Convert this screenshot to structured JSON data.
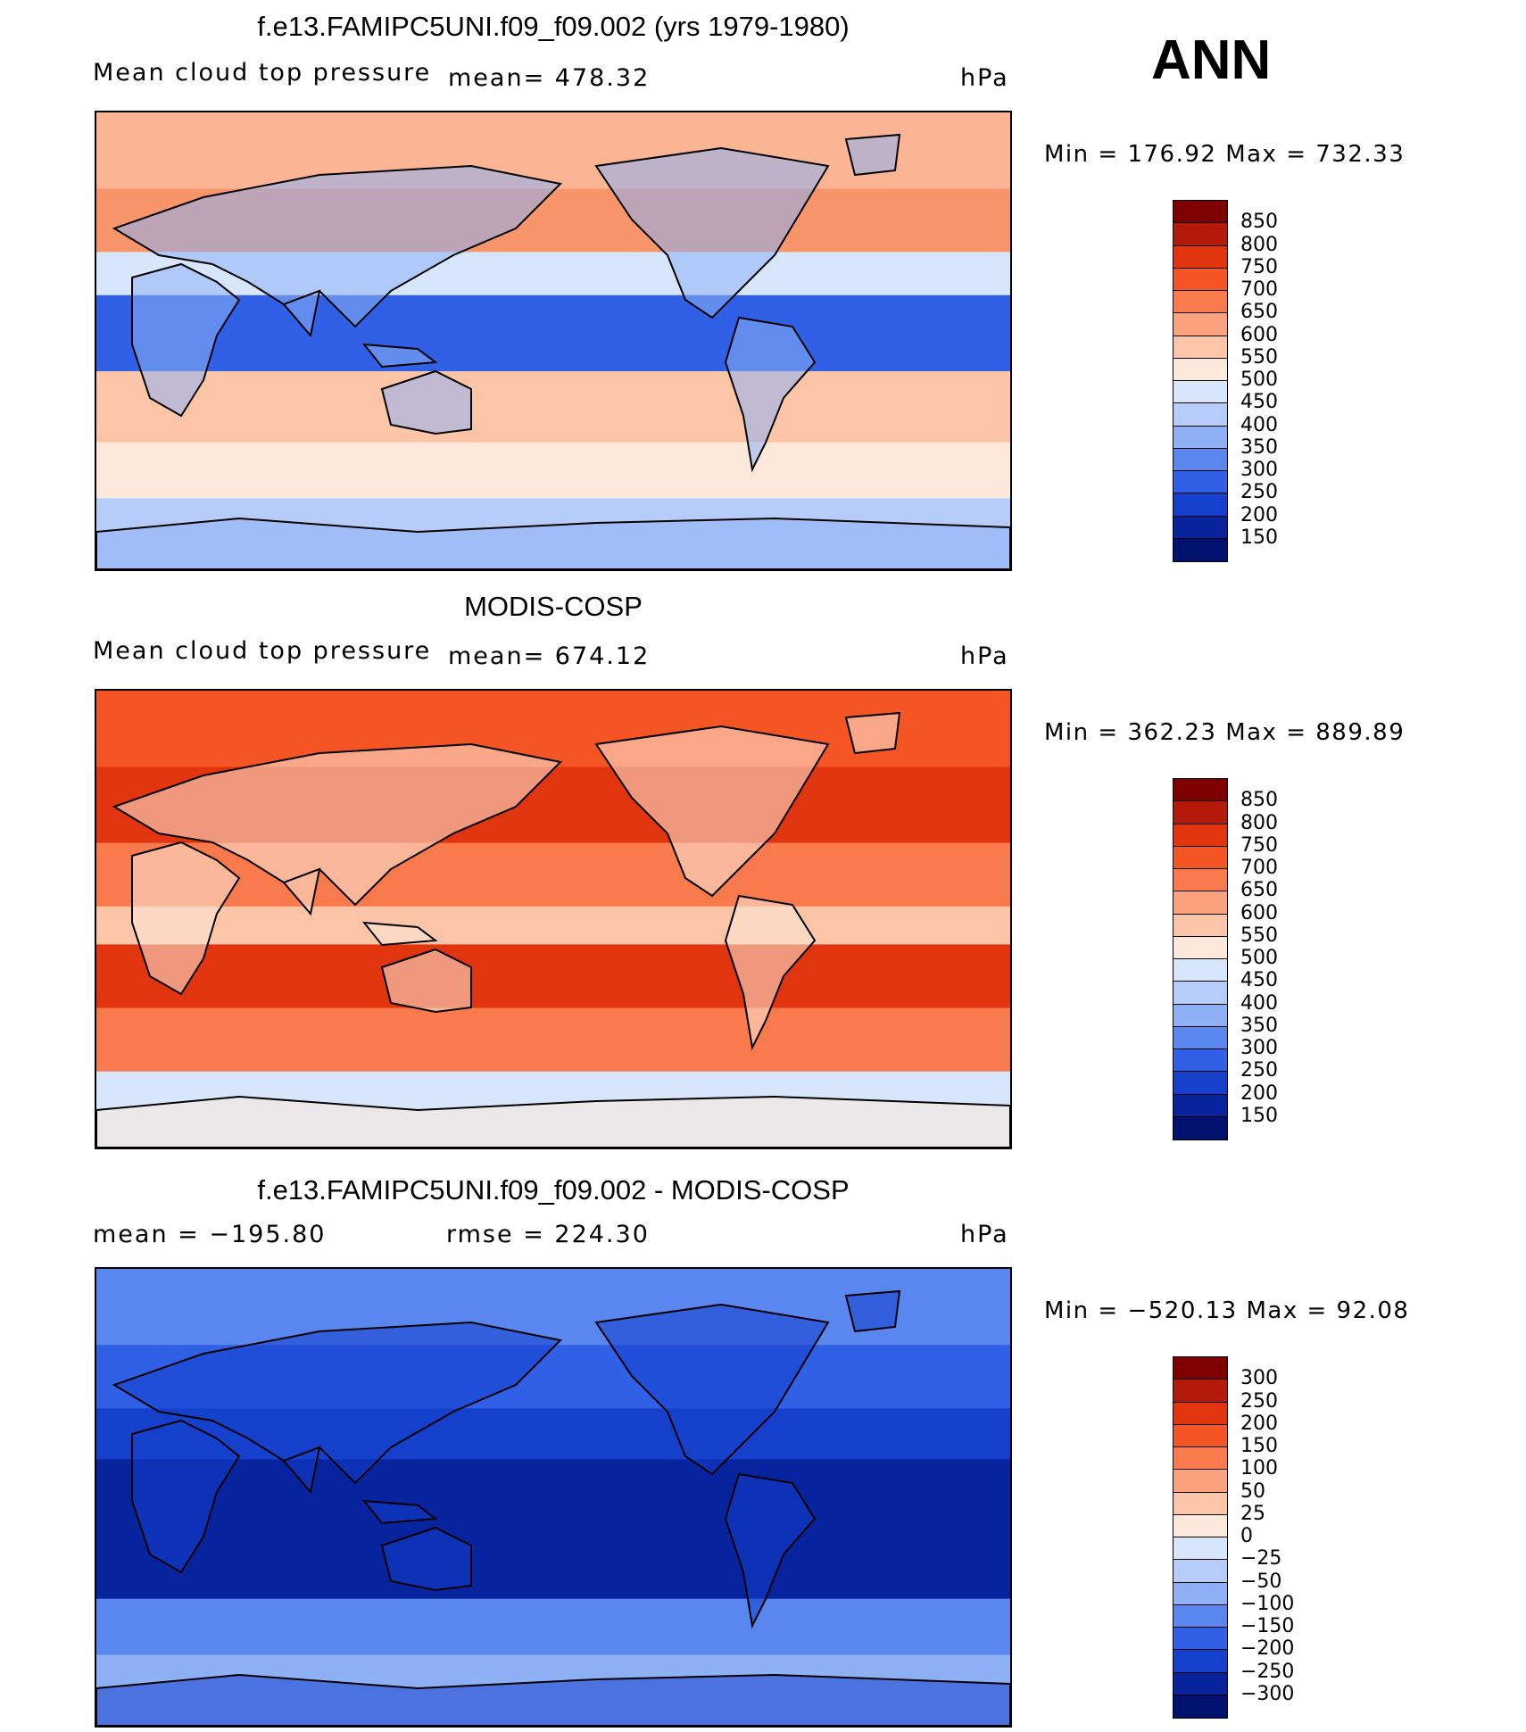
{
  "season": "ANN",
  "panels": [
    {
      "id": "model",
      "title": "f.e13.FAMIPC5UNI.f09_f09.002 (yrs 1979-1980)",
      "variable": "Mean cloud top pressure",
      "stat_left": "mean= 478.32",
      "stat_right": "",
      "units": "hPa",
      "minmax": "Min  =  176.92  Max  =  732.33",
      "colorbar": {
        "labels": [
          "850",
          "800",
          "750",
          "700",
          "650",
          "600",
          "550",
          "500",
          "450",
          "400",
          "350",
          "300",
          "250",
          "200",
          "150"
        ],
        "colors": [
          "#7f0000",
          "#b31a09",
          "#e0350f",
          "#f55524",
          "#f97a4c",
          "#fba27d",
          "#fdc5a7",
          "#fde9db",
          "#d8e6fb",
          "#b5cdf8",
          "#8eb0f5",
          "#5a86f0",
          "#2f60e6",
          "#1440cc",
          "#08239e",
          "#00126e"
        ]
      },
      "map": {
        "ocean": "#fde9db",
        "bands": [
          {
            "lat_from": 90,
            "lat_to": 60,
            "color": "#fbb595"
          },
          {
            "lat_from": 60,
            "lat_to": 35,
            "color": "#f9956a"
          },
          {
            "lat_from": 35,
            "lat_to": 18,
            "color": "#d8e6fb"
          },
          {
            "lat_from": 18,
            "lat_to": -12,
            "color": "#2f60e6"
          },
          {
            "lat_from": -12,
            "lat_to": -40,
            "color": "#fdc5a7"
          },
          {
            "lat_from": -40,
            "lat_to": -62,
            "color": "#fde9db"
          },
          {
            "lat_from": -62,
            "lat_to": -90,
            "color": "#b5cdf8"
          }
        ],
        "land": "#8eb0f5"
      }
    },
    {
      "id": "obs",
      "title": "MODIS-COSP",
      "variable": "Mean cloud top pressure",
      "stat_left": "mean= 674.12",
      "stat_right": "",
      "units": "hPa",
      "minmax": "Min  =  362.23  Max  =  889.89",
      "colorbar": {
        "labels": [
          "850",
          "800",
          "750",
          "700",
          "650",
          "600",
          "550",
          "500",
          "450",
          "400",
          "350",
          "300",
          "250",
          "200",
          "150"
        ],
        "colors": [
          "#7f0000",
          "#b31a09",
          "#e0350f",
          "#f55524",
          "#f97a4c",
          "#fba27d",
          "#fdc5a7",
          "#fde9db",
          "#d8e6fb",
          "#b5cdf8",
          "#8eb0f5",
          "#5a86f0",
          "#2f60e6",
          "#1440cc",
          "#08239e",
          "#00126e"
        ]
      },
      "map": {
        "ocean": "#f55524",
        "bands": [
          {
            "lat_from": 90,
            "lat_to": 60,
            "color": "#f55524"
          },
          {
            "lat_from": 60,
            "lat_to": 30,
            "color": "#e0350f"
          },
          {
            "lat_from": 30,
            "lat_to": 5,
            "color": "#f97a4c"
          },
          {
            "lat_from": 5,
            "lat_to": -10,
            "color": "#fdc5a7"
          },
          {
            "lat_from": -10,
            "lat_to": -35,
            "color": "#e0350f"
          },
          {
            "lat_from": -35,
            "lat_to": -60,
            "color": "#f97a4c"
          },
          {
            "lat_from": -60,
            "lat_to": -90,
            "color": "#d8e6fb"
          }
        ],
        "land": "#fde9db"
      }
    },
    {
      "id": "diff",
      "title": "f.e13.FAMIPC5UNI.f09_f09.002 - MODIS-COSP",
      "variable": "",
      "stat_left": "mean  =  −195.80",
      "stat_right": "rmse  =  224.30",
      "units": "hPa",
      "minmax": "Min  =  −520.13  Max  =    92.08",
      "colorbar": {
        "labels": [
          "300",
          "250",
          "200",
          "150",
          "100",
          "50",
          "25",
          "0",
          "−25",
          "−50",
          "−100",
          "−150",
          "−200",
          "−250",
          "−300"
        ],
        "colors": [
          "#7f0000",
          "#b31a09",
          "#e0350f",
          "#f55524",
          "#f97a4c",
          "#fba27d",
          "#fdc5a7",
          "#fde9db",
          "#d8e6fb",
          "#b5cdf8",
          "#8eb0f5",
          "#5a86f0",
          "#2f60e6",
          "#1440cc",
          "#08239e",
          "#00126e"
        ]
      },
      "map": {
        "ocean": "#2f60e6",
        "bands": [
          {
            "lat_from": 90,
            "lat_to": 60,
            "color": "#5a86f0"
          },
          {
            "lat_from": 60,
            "lat_to": 35,
            "color": "#2f60e6"
          },
          {
            "lat_from": 35,
            "lat_to": 15,
            "color": "#1440cc"
          },
          {
            "lat_from": 15,
            "lat_to": -40,
            "color": "#08239e"
          },
          {
            "lat_from": -40,
            "lat_to": -62,
            "color": "#5a86f0"
          },
          {
            "lat_from": -62,
            "lat_to": -90,
            "color": "#8eb0f5"
          }
        ],
        "land": "#1440cc"
      }
    }
  ]
}
